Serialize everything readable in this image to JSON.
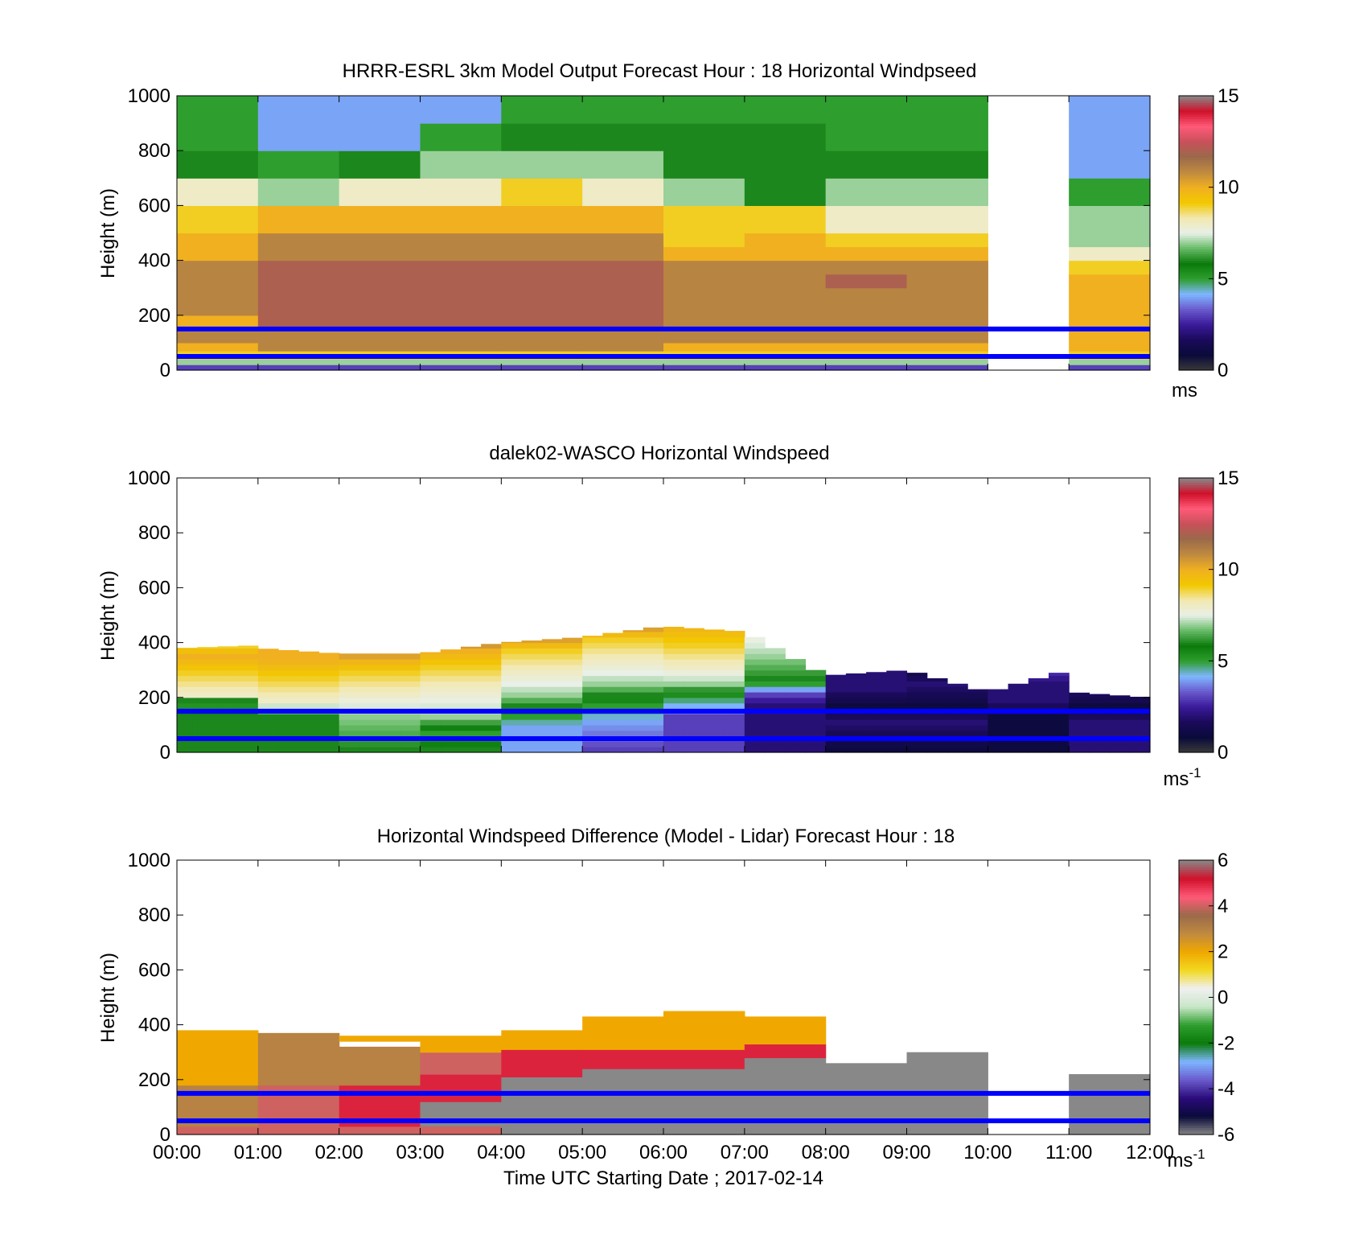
{
  "colormaps": {
    "windspeed": [
      "#3a3a3a",
      "#0a0a3a",
      "#1a0a5a",
      "#3a1a9a",
      "#6a5acd",
      "#7eb6ff",
      "#2e9e2e",
      "#0a7a0a",
      "#66bb66",
      "#e8f0e8",
      "#f2e8b0",
      "#f2c800",
      "#f0b020",
      "#c08a40",
      "#9a6a4a",
      "#c8505a",
      "#ff5a78",
      "#d0102a",
      "#888888"
    ],
    "difference": [
      "#888888",
      "#0a0a3a",
      "#2a0a7a",
      "#6a5acd",
      "#7eb6ff",
      "#0a7a0a",
      "#2e9e2e",
      "#c8e6c8",
      "#f0f0f0",
      "#f2d820",
      "#f0a800",
      "#c08a40",
      "#9a6a4a",
      "#ff5a78",
      "#d0102a",
      "#888888"
    ]
  },
  "ref_lines": {
    "heights_m": [
      150,
      50
    ],
    "color": "#0000ff"
  },
  "chart_data": [
    {
      "id": "model",
      "type": "heatmap",
      "title": "HRRR-ESRL 3km Model Output   Forecast Hour : 18 Horizontal Windpseed",
      "xlabel": "",
      "ylabel": "Height (m)",
      "xlim": [
        0,
        12
      ],
      "ylim": [
        0,
        1000
      ],
      "yticks": [
        0,
        200,
        400,
        600,
        800,
        1000
      ],
      "xticks": [
        0,
        1,
        2,
        3,
        4,
        5,
        6,
        7,
        8,
        9,
        10,
        11,
        12
      ],
      "xticklabels": [],
      "colormap": "windspeed",
      "clim": [
        0,
        15
      ],
      "cbar_ticks": [
        0,
        5,
        10,
        15
      ],
      "cbar_unit": "ms",
      "cbar_unit_sup": "",
      "layers_m": [
        0,
        20,
        40,
        70,
        100,
        150,
        200,
        250,
        300,
        350,
        400,
        450,
        500,
        600,
        700,
        800,
        900,
        1000
      ],
      "missing_hours": [
        10
      ],
      "columns": [
        [
          3,
          7,
          9,
          10,
          11,
          10,
          11,
          11,
          11,
          11,
          10,
          10,
          9,
          8,
          6,
          5,
          5
        ],
        [
          3,
          7,
          9,
          11,
          11,
          12,
          12,
          12,
          12,
          12,
          11,
          11,
          10,
          7,
          5,
          4,
          4
        ],
        [
          3,
          7,
          9,
          11,
          11,
          12,
          12,
          12,
          12,
          12,
          11,
          11,
          10,
          8,
          6,
          4,
          4
        ],
        [
          3,
          7,
          9,
          11,
          11,
          12,
          12,
          12,
          12,
          12,
          11,
          11,
          10,
          8,
          7,
          5,
          4
        ],
        [
          3,
          7,
          9,
          11,
          11,
          12,
          12,
          12,
          12,
          12,
          11,
          11,
          10,
          9,
          7,
          6,
          5
        ],
        [
          3,
          7,
          9,
          11,
          11,
          12,
          12,
          12,
          12,
          12,
          11,
          11,
          10,
          8,
          7,
          6,
          5
        ],
        [
          3,
          7,
          9,
          10,
          11,
          11,
          11,
          11,
          11,
          11,
          10,
          9,
          9,
          7,
          6,
          6,
          5
        ],
        [
          3,
          7,
          9,
          10,
          11,
          11,
          11,
          11,
          11,
          11,
          10,
          10,
          9,
          6,
          6,
          6,
          5
        ],
        [
          3,
          7,
          9,
          10,
          11,
          11,
          11,
          11,
          12,
          11,
          10,
          9,
          8,
          7,
          6,
          5,
          5
        ],
        [
          3,
          7,
          9,
          10,
          11,
          11,
          11,
          11,
          11,
          11,
          10,
          9,
          8,
          7,
          6,
          5,
          5
        ],
        [],
        [
          3,
          7,
          9,
          10,
          10,
          10,
          10,
          10,
          10,
          9,
          8,
          7,
          7,
          5,
          4,
          4,
          4
        ]
      ]
    },
    {
      "id": "lidar",
      "type": "heatmap",
      "title": "dalek02-WASCO  Horizontal Windspeed",
      "xlabel": "",
      "ylabel": "Height (m)",
      "xlim": [
        0,
        12
      ],
      "ylim": [
        0,
        1000
      ],
      "yticks": [
        0,
        200,
        400,
        600,
        800,
        1000
      ],
      "xticks": [
        0,
        1,
        2,
        3,
        4,
        5,
        6,
        7,
        8,
        9,
        10,
        11,
        12
      ],
      "xticklabels": [],
      "colormap": "windspeed",
      "clim": [
        0,
        15
      ],
      "cbar_ticks": [
        0,
        5,
        10,
        15
      ],
      "cbar_unit": "ms",
      "cbar_unit_sup": "-1",
      "layer_step_m": 20,
      "column_step_h": 0.25,
      "segments": [
        {
          "t": [
            0,
            1
          ],
          "tops": [
            380,
            390
          ],
          "profile": [
            [
              0,
              6
            ],
            [
              130,
              6
            ],
            [
              170,
              5
            ],
            [
              200,
              8
            ],
            [
              280,
              9
            ],
            [
              340,
              10
            ],
            [
              380,
              9
            ]
          ]
        },
        {
          "t": [
            1,
            2
          ],
          "tops": [
            380,
            360
          ],
          "profile": [
            [
              0,
              6
            ],
            [
              120,
              6
            ],
            [
              180,
              8
            ],
            [
              260,
              9
            ],
            [
              330,
              10
            ],
            [
              360,
              10
            ]
          ]
        },
        {
          "t": [
            2,
            3
          ],
          "tops": [
            360,
            360
          ],
          "profile": [
            [
              0,
              6
            ],
            [
              130,
              7
            ],
            [
              200,
              8
            ],
            [
              280,
              9
            ],
            [
              330,
              10
            ],
            [
              360,
              11
            ]
          ]
        },
        {
          "t": [
            3,
            4
          ],
          "tops": [
            360,
            400
          ],
          "profile": [
            [
              0,
              6
            ],
            [
              60,
              5
            ],
            [
              120,
              7
            ],
            [
              220,
              8
            ],
            [
              300,
              9
            ],
            [
              360,
              10
            ],
            [
              400,
              11
            ]
          ]
        },
        {
          "t": [
            4,
            5
          ],
          "tops": [
            400,
            420
          ],
          "profile": [
            [
              0,
              4
            ],
            [
              80,
              4
            ],
            [
              120,
              5
            ],
            [
              200,
              7
            ],
            [
              280,
              8
            ],
            [
              360,
              9
            ],
            [
              420,
              11
            ]
          ]
        },
        {
          "t": [
            5,
            6
          ],
          "tops": [
            420,
            460
          ],
          "profile": [
            [
              0,
              3
            ],
            [
              100,
              4
            ],
            [
              160,
              5
            ],
            [
              240,
              7
            ],
            [
              320,
              8
            ],
            [
              400,
              9
            ],
            [
              460,
              11
            ]
          ]
        },
        {
          "t": [
            6,
            7
          ],
          "tops": [
            460,
            440
          ],
          "profile": [
            [
              0,
              3
            ],
            [
              120,
              3
            ],
            [
              190,
              5
            ],
            [
              240,
              7
            ],
            [
              300,
              8
            ],
            [
              380,
              9
            ],
            [
              460,
              10
            ]
          ]
        },
        {
          "t": [
            7,
            8
          ],
          "tops": [
            440,
            280
          ],
          "profile": [
            [
              0,
              2
            ],
            [
              160,
              2
            ],
            [
              200,
              3
            ],
            [
              260,
              6
            ],
            [
              340,
              7
            ],
            [
              440,
              8
            ]
          ]
        },
        {
          "t": [
            8,
            9
          ],
          "tops": [
            280,
            300
          ],
          "profile": [
            [
              0,
              1
            ],
            [
              100,
              2
            ],
            [
              160,
              1
            ],
            [
              220,
              2
            ],
            [
              300,
              2
            ]
          ]
        },
        {
          "t": [
            9,
            10
          ],
          "tops": [
            300,
            220
          ],
          "profile": [
            [
              0,
              1
            ],
            [
              100,
              2
            ],
            [
              160,
              1
            ],
            [
              240,
              2
            ],
            [
              300,
              1
            ]
          ]
        },
        {
          "t": [
            10,
            11
          ],
          "tops": [
            220,
            300
          ],
          "profile": [
            [
              0,
              1
            ],
            [
              120,
              1
            ],
            [
              180,
              2
            ],
            [
              240,
              2
            ],
            [
              300,
              3
            ]
          ]
        },
        {
          "t": [
            11,
            12
          ],
          "tops": [
            220,
            200
          ],
          "profile": [
            [
              0,
              2
            ],
            [
              100,
              2
            ],
            [
              160,
              1
            ],
            [
              220,
              2
            ]
          ]
        }
      ]
    },
    {
      "id": "difference",
      "type": "heatmap",
      "title": "Horizontal Windspeed Difference (Model - Lidar) Forecast Hour : 18",
      "xlabel": "Time UTC  Starting Date ; 2017-02-14",
      "ylabel": "Height (m)",
      "xlim": [
        0,
        12
      ],
      "ylim": [
        0,
        1000
      ],
      "yticks": [
        0,
        200,
        400,
        600,
        800,
        1000
      ],
      "xticks": [
        0,
        1,
        2,
        3,
        4,
        5,
        6,
        7,
        8,
        9,
        10,
        11,
        12
      ],
      "xticklabels": [
        "00:00",
        "01:00",
        "02:00",
        "03:00",
        "04:00",
        "05:00",
        "06:00",
        "07:00",
        "08:00",
        "09:00",
        "10:00",
        "11:00",
        "12:00"
      ],
      "colormap": "difference",
      "clim": [
        -6,
        6
      ],
      "cbar_ticks": [
        -6,
        -4,
        -2,
        0,
        2,
        4,
        6
      ],
      "cbar_unit": "ms",
      "cbar_unit_sup": "-1",
      "gap_m": [
        320,
        340
      ],
      "blocks": [
        {
          "t": [
            0,
            1
          ],
          "top": 380,
          "layers": [
            [
              0,
              30,
              4
            ],
            [
              30,
              100,
              3
            ],
            [
              100,
              180,
              3
            ],
            [
              180,
              260,
              2
            ],
            [
              260,
              380,
              2
            ]
          ]
        },
        {
          "t": [
            1,
            2
          ],
          "top": 370,
          "layers": [
            [
              0,
              30,
              4
            ],
            [
              30,
              180,
              4
            ],
            [
              180,
              260,
              3
            ],
            [
              260,
              370,
              3
            ]
          ]
        },
        {
          "t": [
            2,
            3
          ],
          "top": 360,
          "layers": [
            [
              0,
              30,
              4
            ],
            [
              30,
              180,
              5
            ],
            [
              180,
              320,
              3
            ],
            [
              340,
              360,
              2
            ]
          ]
        },
        {
          "t": [
            3,
            4
          ],
          "top": 360,
          "layers": [
            [
              0,
              30,
              4
            ],
            [
              30,
              120,
              6
            ],
            [
              120,
              220,
              5
            ],
            [
              220,
              300,
              4
            ],
            [
              300,
              360,
              2
            ]
          ]
        },
        {
          "t": [
            4,
            5
          ],
          "top": 380,
          "layers": [
            [
              0,
              210,
              7
            ],
            [
              210,
              310,
              5
            ],
            [
              310,
              380,
              2
            ]
          ]
        },
        {
          "t": [
            5,
            6
          ],
          "top": 430,
          "layers": [
            [
              0,
              240,
              7
            ],
            [
              240,
              310,
              5
            ],
            [
              310,
              430,
              2
            ]
          ]
        },
        {
          "t": [
            6,
            7
          ],
          "top": 450,
          "layers": [
            [
              0,
              240,
              7
            ],
            [
              240,
              310,
              5
            ],
            [
              310,
              450,
              2
            ]
          ]
        },
        {
          "t": [
            7,
            8
          ],
          "top": 430,
          "layers": [
            [
              0,
              280,
              7
            ],
            [
              280,
              330,
              5
            ],
            [
              330,
              430,
              2
            ]
          ]
        },
        {
          "t": [
            8,
            9
          ],
          "top": 260,
          "layers": [
            [
              0,
              260,
              7
            ]
          ]
        },
        {
          "t": [
            9,
            10
          ],
          "top": 300,
          "layers": [
            [
              0,
              300,
              7
            ]
          ]
        },
        {
          "t": [
            11,
            12
          ],
          "top": 220,
          "layers": [
            [
              0,
              220,
              7
            ]
          ]
        }
      ]
    }
  ]
}
